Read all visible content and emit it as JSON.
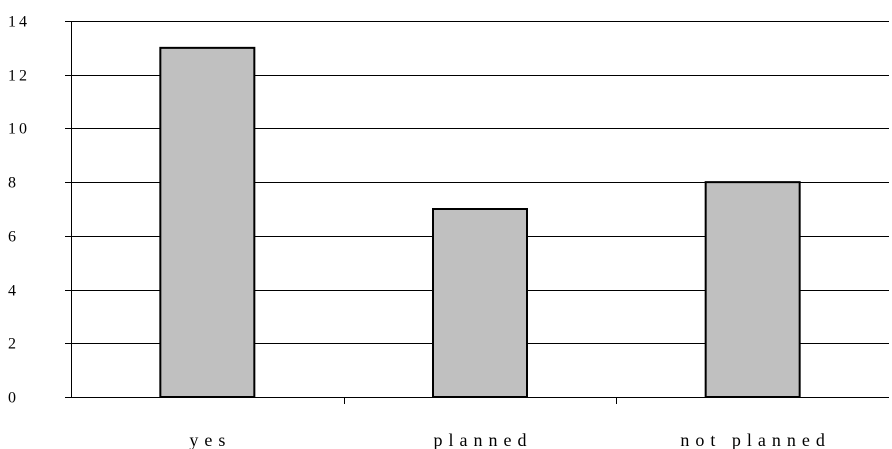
{
  "chart_data": {
    "type": "bar",
    "categories": [
      "yes",
      "planned",
      "not planned"
    ],
    "values": [
      13,
      7,
      8
    ],
    "title": "",
    "xlabel": "",
    "ylabel": "",
    "ylim": [
      0,
      14
    ],
    "yticks": [
      "0",
      "2",
      "4",
      "6",
      "8",
      "10",
      "12",
      "14"
    ],
    "grid": true,
    "legend": "none",
    "colors": {
      "bar_fill": "#c0c0c0",
      "bar_stroke": "#000000",
      "grid": "#000000"
    }
  }
}
